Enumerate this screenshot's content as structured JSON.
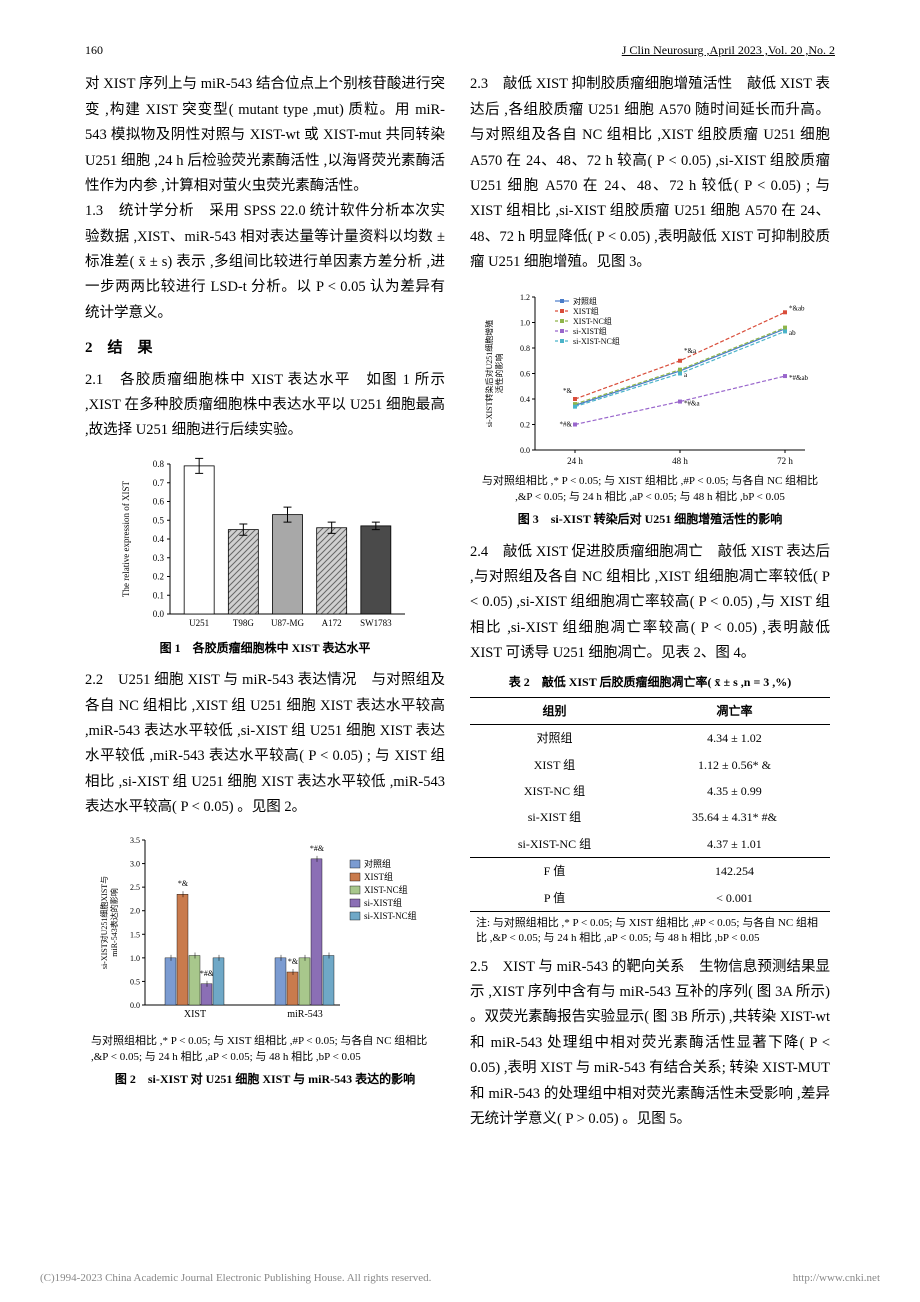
{
  "header": {
    "page_num": "160",
    "journal": "J Clin Neurosurg ,April 2023 ,Vol. 20 ,No. 2"
  },
  "left_column": {
    "para1": "对 XIST 序列上与 miR-543 结合位点上个别核苷酸进行突变 ,构建 XIST 突变型( mutant type ,mut) 质粒。用 miR-543 模拟物及阴性对照与 XIST-wt 或 XIST-mut 共同转染 U251 细胞 ,24 h 后检验荧光素酶活性 ,以海肾荧光素酶活性作为内参 ,计算相对萤火虫荧光素酶活性。",
    "para2_label": "1.3",
    "para2_title": "统计学分析",
    "para2": "采用 SPSS 22.0 统计软件分析本次实验数据 ,XIST、miR-543 相对表达量等计量资料以均数 ± 标准差( x̄ ± s) 表示 ,多组间比较进行单因素方差分析 ,进一步两两比较进行 LSD-t 分析。以 P < 0.05 认为差异有统计学意义。",
    "sec2": "2　结　果",
    "para3_label": "2.1",
    "para3_title": "各胶质瘤细胞株中 XIST 表达水平",
    "para3": "如图 1 所示 ,XIST 在多种胶质瘤细胞株中表达水平以 U251 细胞最高 ,故选择 U251 细胞进行后续实验。",
    "para4_label": "2.2",
    "para4_title": "U251 细胞 XIST 与 miR-543 表达情况",
    "para4": "与对照组及各自 NC 组相比 ,XIST 组 U251 细胞 XIST 表达水平较高 ,miR-543 表达水平较低 ,si-XIST 组 U251 细胞 XIST 表达水平较低 ,miR-543 表达水平较高( P < 0.05) ; 与 XIST 组相比 ,si-XIST 组 U251 细胞 XIST 表达水平较低 ,miR-543 表达水平较高( P < 0.05) 。见图 2。"
  },
  "right_column": {
    "para1_label": "2.3",
    "para1_title": "敲低 XIST 抑制胶质瘤细胞增殖活性",
    "para1": "敲低 XIST 表达后 ,各组胶质瘤 U251 细胞 A570 随时间延长而升高。与对照组及各自 NC 组相比 ,XIST 组胶质瘤 U251 细胞 A570 在 24、48、72 h 较高( P < 0.05) ,si-XIST 组胶质瘤 U251 细胞 A570 在 24、48、72 h 较低( P < 0.05) ; 与 XIST 组相比 ,si-XIST 组胶质瘤 U251 细胞 A570 在 24、48、72 h 明显降低( P < 0.05) ,表明敲低 XIST 可抑制胶质瘤 U251 细胞增殖。见图 3。",
    "para2_label": "2.4",
    "para2_title": "敲低 XIST 促进胶质瘤细胞凋亡",
    "para2": "敲低 XIST 表达后 ,与对照组及各自 NC 组相比 ,XIST 组细胞凋亡率较低( P < 0.05) ,si-XIST 组细胞凋亡率较高( P < 0.05) ,与 XIST 组相比 ,si-XIST 组细胞凋亡率较高( P < 0.05) ,表明敲低 XIST 可诱导 U251 细胞凋亡。见表 2、图 4。",
    "para3_label": "2.5",
    "para3_title": "XIST 与 miR-543 的靶向关系",
    "para3": "生物信息预测结果显示 ,XIST 序列中含有与 miR-543 互补的序列( 图 3A 所示) 。双荧光素酶报告实验显示( 图 3B 所示) ,共转染 XIST-wt 和 miR-543 处理组中相对荧光素酶活性显著下降( P < 0.05) ,表明 XIST 与 miR-543 有结合关系; 转染 XIST-MUT 和 miR-543 的处理组中相对荧光素酶活性未受影响 ,差异无统计学意义( P > 0.05) 。见图 5。"
  },
  "figure1": {
    "type": "bar",
    "ylabel": "The relative expression of XIST",
    "categories": [
      "U251",
      "T98G",
      "U87-MG",
      "A172",
      "SW1783"
    ],
    "values": [
      0.79,
      0.45,
      0.53,
      0.46,
      0.47
    ],
    "errors": [
      0.04,
      0.03,
      0.04,
      0.03,
      0.02
    ],
    "bar_colors": [
      "#ffffff",
      "#d0d0d0",
      "#a8a8a8",
      "#808080",
      "#4a4a4a"
    ],
    "hatches": [
      "",
      "diag",
      "",
      "diag",
      ""
    ],
    "ylim": [
      0,
      0.8
    ],
    "ytick_step": 0.1,
    "border_color": "#000000",
    "caption": "图 1　各胶质瘤细胞株中 XIST 表达水平"
  },
  "figure2": {
    "type": "grouped-bar",
    "ylabel": "si-XIST对U251细胞XIST与\nmiR-543表达的影响",
    "x_categories": [
      "XIST",
      "miR-543"
    ],
    "groups": [
      "对照组",
      "XIST组",
      "XIST-NC组",
      "si-XIST组",
      "si-XIST-NC组"
    ],
    "values": {
      "XIST": [
        1.0,
        2.35,
        1.05,
        0.45,
        1.0
      ],
      "miR-543": [
        1.0,
        0.7,
        1.0,
        3.1,
        1.05
      ]
    },
    "markers": {
      "XIST": [
        "",
        "*&",
        "",
        "*#&",
        ""
      ],
      "miR-543": [
        "",
        "*&",
        "",
        "*#&",
        ""
      ]
    },
    "colors": [
      "#7b9bd1",
      "#c97b4d",
      "#a8c78c",
      "#8b6fb5",
      "#6fa8c7"
    ],
    "ylim": [
      0,
      3.5
    ],
    "ytick_step": 0.5,
    "note": "与对照组相比 ,* P < 0.05; 与 XIST 组相比 ,#P < 0.05; 与各自 NC 组相比 ,&P < 0.05; 与 24 h 相比 ,aP < 0.05; 与 48 h 相比 ,bP < 0.05",
    "caption": "图 2　si-XIST 对 U251 细胞 XIST 与 miR-543 表达的影响"
  },
  "figure3": {
    "type": "line",
    "ylabel": "si-XIST转染后对U251细胞增殖\n活性的影响",
    "x_categories": [
      "24 h",
      "48 h",
      "72 h"
    ],
    "series": [
      "对照组",
      "XIST组",
      "XIST-NC组",
      "si-XIST组",
      "si-XIST-NC组"
    ],
    "values": {
      "对照组": [
        0.35,
        0.62,
        0.95
      ],
      "XIST组": [
        0.4,
        0.7,
        1.08
      ],
      "XIST-NC组": [
        0.36,
        0.63,
        0.96
      ],
      "si-XIST组": [
        0.2,
        0.38,
        0.58
      ],
      "si-XIST-NC组": [
        0.34,
        0.6,
        0.93
      ]
    },
    "colors": [
      "#4a7cc9",
      "#d94d3a",
      "#8fb54a",
      "#9966cc",
      "#4ab3c9"
    ],
    "markers_sym": [
      "diamond",
      "square",
      "triangle",
      "x",
      "asterisk"
    ],
    "annotations": {
      "24": [
        "*#&",
        "*&"
      ],
      "48": [
        "*#&a",
        "*&a",
        "a"
      ],
      "72": [
        "*#&ab",
        "*&ab",
        "ab"
      ]
    },
    "ylim": [
      0,
      1.2
    ],
    "ytick_step": 0.2,
    "note": "与对照组相比 ,* P < 0.05; 与 XIST 组相比 ,#P < 0.05; 与各自 NC 组相比 ,&P < 0.05; 与 24 h 相比 ,aP < 0.05; 与 48 h 相比 ,bP < 0.05",
    "caption": "图 3　si-XIST 转染后对 U251 细胞增殖活性的影响"
  },
  "table2": {
    "title": "表 2　敲低 XIST 后胶质瘤细胞凋亡率( x̄ ± s ,n = 3 ,%)",
    "columns": [
      "组别",
      "凋亡率"
    ],
    "rows": [
      [
        "对照组",
        "4.34 ± 1.02"
      ],
      [
        "XIST 组",
        "1.12 ± 0.56* &"
      ],
      [
        "XIST-NC 组",
        "4.35 ± 0.99"
      ],
      [
        "si-XIST 组",
        "35.64 ± 4.31* #&"
      ],
      [
        "si-XIST-NC 组",
        "4.37 ± 1.01"
      ],
      [
        "F 值",
        "142.254"
      ],
      [
        "P 值",
        "< 0.001"
      ]
    ],
    "note": "注: 与对照组相比 ,* P < 0.05; 与 XIST 组相比 ,#P < 0.05; 与各自 NC 组相比 ,&P < 0.05; 与 24 h 相比 ,aP < 0.05; 与 48 h 相比 ,bP < 0.05"
  },
  "footer": {
    "left": "(C)1994-2023 China Academic Journal Electronic Publishing House. All rights reserved.",
    "right": "http://www.cnki.net"
  }
}
